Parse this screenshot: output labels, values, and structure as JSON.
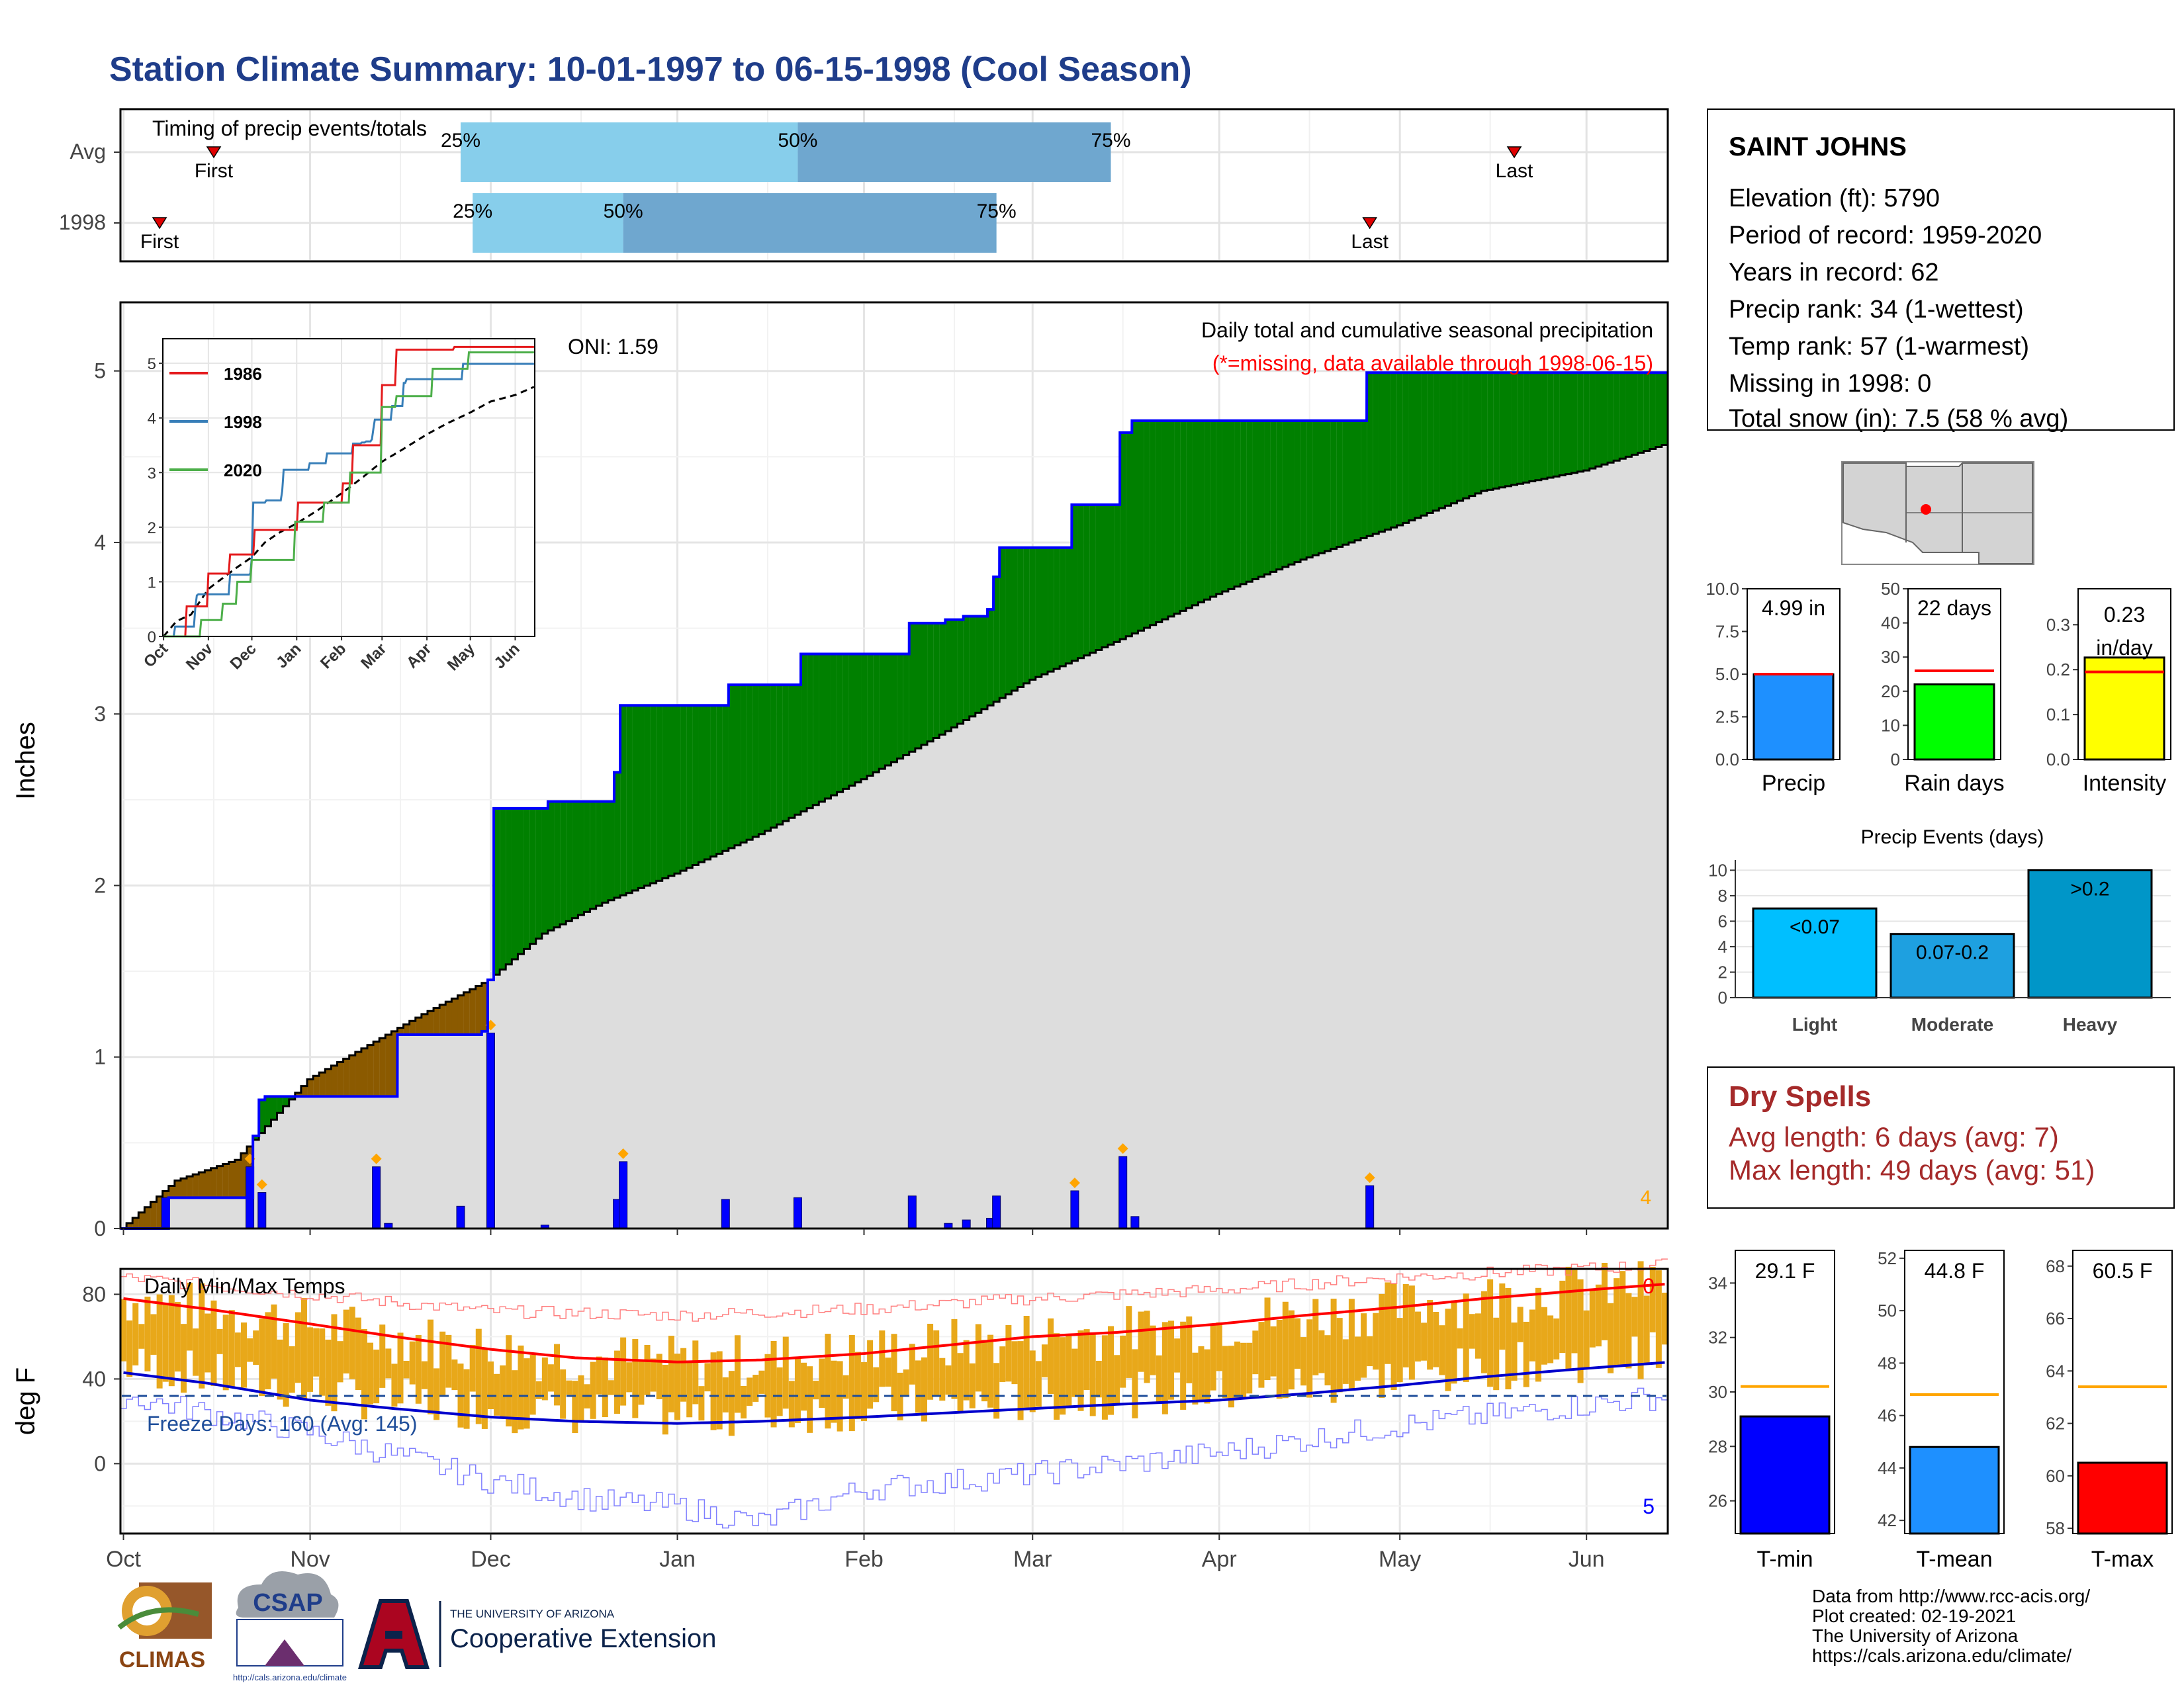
{
  "title": "Station Climate Summary: 10-01-1997 to 06-15-1998 (Cool Season)",
  "colors": {
    "title": "#1F3D8A",
    "cum_obs_line": "#0000FF",
    "above_fill": "#008000",
    "below_fill": "#8B5A00",
    "clim_fill": "#DDDDDD",
    "daily_bar": "#0000FF",
    "tmax_line": "#FF0000",
    "tmin_line": "#0000CC",
    "temp_bar": "#E8A81A",
    "q1_bar": "#87CEEB",
    "q2_bar": "#6FA7CF"
  },
  "timing": {
    "label": "Timing of precip events/totals",
    "rows": [
      {
        "name": "Avg",
        "first_label": "First",
        "last_label": "Last",
        "first_date": "1997-10-16",
        "p25": "1997-11-26",
        "p50": "1998-01-21",
        "p75": "1998-03-14",
        "last_date": "1998-05-20",
        "p25_label": "25%",
        "p50_label": "50%",
        "p75_label": "75%"
      },
      {
        "name": "1998",
        "first_label": "First",
        "last_label": "Last",
        "first_date": "1997-10-07",
        "p25": "1997-11-28",
        "p50": "1997-12-23",
        "p75": "1998-02-23",
        "last_date": "1998-04-26",
        "p25_label": "25%",
        "p50_label": "50%",
        "p75_label": "75%"
      }
    ]
  },
  "precip": {
    "ylabel": "Inches",
    "header1": "Daily total and cumulative seasonal precipitation",
    "header2": "(*=missing, data available through 1998-06-15)",
    "oni": "ONI: 1.59",
    "missing_count": "4"
  },
  "temps": {
    "ylabel": "deg F",
    "header": "Daily Min/Max Temps",
    "freeze_label": "Freeze Days: 160 (Avg: 145)",
    "above_count": "0",
    "below_count": "5"
  },
  "months": [
    "Oct",
    "Nov",
    "Dec",
    "Jan",
    "Feb",
    "Mar",
    "Apr",
    "May",
    "Jun"
  ],
  "inset_months": [
    "Oct",
    "Nov",
    "Dec",
    "Jan",
    "Feb",
    "Mar",
    "Apr",
    "May",
    "Jun"
  ],
  "station": {
    "name": "SAINT JOHNS",
    "lines": [
      "Elevation (ft): 5790",
      "Period of record: 1959-2020",
      "Years in record: 62",
      "Precip rank: 34 (1-wettest)",
      "Temp rank: 57 (1-warmest)",
      "Missing in 1998: 0",
      "Total snow (in): 7.5 (58 % avg)"
    ]
  },
  "mini_bars": [
    {
      "xlabel": "Precip",
      "value_label": "4.99 in",
      "value": 4.99,
      "avg": 5.0,
      "ymax": 10,
      "ticks": [
        "0.0",
        "2.5",
        "5.0",
        "7.5",
        "10.0"
      ],
      "tick_values": [
        0,
        2.5,
        5,
        7.5,
        10
      ],
      "color": "#1E90FF"
    },
    {
      "xlabel": "Rain days",
      "value_label": "22 days",
      "value": 22,
      "avg": 26,
      "ymax": 50,
      "ticks": [
        "0",
        "10",
        "20",
        "30",
        "40",
        "50"
      ],
      "tick_values": [
        0,
        10,
        20,
        30,
        40,
        50
      ],
      "color": "#00FF00"
    },
    {
      "xlabel": "Intensity",
      "value_label": "0.23 in/day",
      "value": 0.227,
      "avg": 0.195,
      "ymax": 0.38,
      "ticks": [
        "0.0",
        "0.1",
        "0.2",
        "0.3"
      ],
      "tick_values": [
        0,
        0.1,
        0.2,
        0.3
      ],
      "color": "#FFFF00"
    }
  ],
  "events": {
    "title": "Precip Events (days)",
    "categories": [
      "Light",
      "Moderate",
      "Heavy"
    ],
    "labels": [
      "<0.07",
      "0.07-0.2",
      ">0.2"
    ],
    "values": [
      7,
      5,
      10
    ],
    "ticks": [
      "0",
      "2",
      "4",
      "6",
      "8",
      "10"
    ],
    "colors": [
      "#00BFFF",
      "#1EA0E0",
      "#0096C8"
    ]
  },
  "dry_spells": {
    "title": "Dry Spells",
    "avg_line": "Avg length: 6 days (avg: 7)",
    "max_line": "Max length: 49 days (avg: 51)"
  },
  "temp_bars": [
    {
      "xlabel": "T-min",
      "value_label": "29.1 F",
      "value": 29.1,
      "avg": 30.2,
      "ymin": 24.8,
      "ymax": 35.2,
      "ticks": [
        "26",
        "28",
        "30",
        "32",
        "34"
      ],
      "tick_values": [
        26,
        28,
        30,
        32,
        34
      ],
      "color": "#0000FF"
    },
    {
      "xlabel": "T-mean",
      "value_label": "44.8 F",
      "value": 44.8,
      "avg": 46.8,
      "ymin": 41.5,
      "ymax": 52.3,
      "ticks": [
        "42",
        "44",
        "46",
        "48",
        "50",
        "52"
      ],
      "tick_values": [
        42,
        44,
        46,
        48,
        50,
        52
      ],
      "color": "#1E90FF"
    },
    {
      "xlabel": "T-max",
      "value_label": "60.5 F",
      "value": 60.5,
      "avg": 63.4,
      "ymin": 57.8,
      "ymax": 68.6,
      "ticks": [
        "58",
        "60",
        "62",
        "64",
        "66",
        "68"
      ],
      "tick_values": [
        58,
        60,
        62,
        64,
        66,
        68
      ],
      "color": "#FF0000"
    }
  ],
  "credits": [
    "Data from http://www.rcc-acis.org/",
    "Plot created: 02-19-2021",
    "The University of Arizona",
    "https://cals.arizona.edu/climate/"
  ],
  "logos": {
    "climas": "CLIMAS",
    "csap": "CSAP",
    "csap_url": "http://cals.arizona.edu/climate",
    "ua_top": "THE UNIVERSITY OF ARIZONA",
    "ua_bottom": "Cooperative Extension"
  },
  "inset": {
    "series": [
      {
        "name": "1986",
        "color": "#E41A1C"
      },
      {
        "name": "1998",
        "color": "#377EB8"
      },
      {
        "name": "2020",
        "color": "#4DAF4A"
      }
    ],
    "yticks": [
      "0",
      "1",
      "2",
      "3",
      "4",
      "5"
    ]
  },
  "chart_data": [
    {
      "type": "line",
      "title": "Daily total and cumulative seasonal precipitation",
      "ylabel": "Inches",
      "ylim": [
        0,
        5.4
      ],
      "x_range": [
        "1997-10-01",
        "1998-06-15"
      ],
      "series": [
        {
          "name": "Cumulative 1998",
          "points": [
            [
              "1997-10-01",
              0
            ],
            [
              "1997-10-08",
              0.0
            ],
            [
              "1997-10-09",
              0.18
            ],
            [
              "1997-10-22",
              0.18
            ],
            [
              "1997-10-23",
              0.54
            ],
            [
              "1997-10-24",
              0.75
            ],
            [
              "1997-10-25",
              0.77
            ],
            [
              "1997-11-05",
              0.77
            ],
            [
              "1997-11-15",
              0.77
            ],
            [
              "1997-11-16",
              1.13
            ],
            [
              "1997-11-30",
              1.15
            ],
            [
              "1997-12-01",
              1.45
            ],
            [
              "1997-12-02",
              2.45
            ],
            [
              "1997-12-10",
              2.45
            ],
            [
              "1997-12-11",
              2.49
            ],
            [
              "1997-12-21",
              2.49
            ],
            [
              "1997-12-22",
              2.66
            ],
            [
              "1997-12-23",
              3.05
            ],
            [
              "1998-01-09",
              3.05
            ],
            [
              "1998-01-10",
              3.17
            ],
            [
              "1998-01-21",
              3.17
            ],
            [
              "1998-01-22",
              3.35
            ],
            [
              "1998-02-08",
              3.35
            ],
            [
              "1998-02-09",
              3.53
            ],
            [
              "1998-02-15",
              3.55
            ],
            [
              "1998-02-18",
              3.57
            ],
            [
              "1998-02-22",
              3.61
            ],
            [
              "1998-02-23",
              3.8
            ],
            [
              "1998-02-24",
              3.97
            ],
            [
              "1998-03-07",
              3.97
            ],
            [
              "1998-03-08",
              4.22
            ],
            [
              "1998-03-15",
              4.22
            ],
            [
              "1998-03-16",
              4.64
            ],
            [
              "1998-03-18",
              4.71
            ],
            [
              "1998-04-25",
              4.71
            ],
            [
              "1998-04-26",
              4.99
            ],
            [
              "1998-06-15",
              4.99
            ]
          ]
        },
        {
          "name": "Average cumulative",
          "points": [
            [
              "1997-10-01",
              0
            ],
            [
              "1997-10-10",
              0.28
            ],
            [
              "1997-10-20",
              0.4
            ],
            [
              "1997-11-01",
              0.87
            ],
            [
              "1997-11-10",
              1.05
            ],
            [
              "1997-11-20",
              1.25
            ],
            [
              "1997-12-01",
              1.45
            ],
            [
              "1997-12-10",
              1.72
            ],
            [
              "1997-12-20",
              1.9
            ],
            [
              "1998-01-01",
              2.07
            ],
            [
              "1998-01-15",
              2.3
            ],
            [
              "1998-02-01",
              2.62
            ],
            [
              "1998-02-15",
              2.9
            ],
            [
              "1998-03-01",
              3.2
            ],
            [
              "1998-03-15",
              3.42
            ],
            [
              "1998-04-01",
              3.7
            ],
            [
              "1998-04-15",
              3.9
            ],
            [
              "1998-05-01",
              4.1
            ],
            [
              "1998-05-15",
              4.3
            ],
            [
              "1998-06-01",
              4.42
            ],
            [
              "1998-06-15",
              4.58
            ]
          ]
        }
      ],
      "daily_precip": [
        [
          "1997-10-08",
          0.18
        ],
        [
          "1997-10-22",
          0.36
        ],
        [
          "1997-10-24",
          0.21
        ],
        [
          "1997-11-12",
          0.36
        ],
        [
          "1997-11-14",
          0.03
        ],
        [
          "1997-11-26",
          0.13
        ],
        [
          "1997-12-01",
          1.14
        ],
        [
          "1997-12-10",
          0.02
        ],
        [
          "1997-12-22",
          0.17
        ],
        [
          "1997-12-23",
          0.39
        ],
        [
          "1998-01-09",
          0.17
        ],
        [
          "1998-01-21",
          0.18
        ],
        [
          "1998-02-09",
          0.19
        ],
        [
          "1998-02-15",
          0.03
        ],
        [
          "1998-02-18",
          0.05
        ],
        [
          "1998-02-22",
          0.06
        ],
        [
          "1998-02-23",
          0.19
        ],
        [
          "1998-03-08",
          0.22
        ],
        [
          "1998-03-16",
          0.42
        ],
        [
          "1998-03-18",
          0.07
        ],
        [
          "1998-04-26",
          0.25
        ]
      ]
    },
    {
      "type": "line",
      "title": "Daily Min/Max Temps",
      "ylabel": "deg F",
      "ylim": [
        -33,
        92
      ],
      "x_range": [
        "1997-10-01",
        "1998-06-15"
      ],
      "series": [
        {
          "name": "Avg max",
          "points": [
            [
              "1997-10-01",
              78
            ],
            [
              "1997-10-15",
              73
            ],
            [
              "1997-11-01",
              66
            ],
            [
              "1997-11-15",
              60
            ],
            [
              "1997-12-01",
              54
            ],
            [
              "1997-12-15",
              50
            ],
            [
              "1998-01-01",
              48
            ],
            [
              "1998-01-15",
              49
            ],
            [
              "1998-02-01",
              52
            ],
            [
              "1998-02-15",
              56
            ],
            [
              "1998-03-01",
              60
            ],
            [
              "1998-03-15",
              62
            ],
            [
              "1998-04-01",
              66
            ],
            [
              "1998-04-15",
              70
            ],
            [
              "1998-05-01",
              74
            ],
            [
              "1998-05-15",
              78
            ],
            [
              "1998-06-01",
              82
            ],
            [
              "1998-06-15",
              85
            ]
          ]
        },
        {
          "name": "Avg min",
          "points": [
            [
              "1997-10-01",
              43
            ],
            [
              "1997-10-15",
              38
            ],
            [
              "1997-11-01",
              30
            ],
            [
              "1997-11-15",
              26
            ],
            [
              "1997-12-01",
              22
            ],
            [
              "1997-12-15",
              20
            ],
            [
              "1998-01-01",
              19
            ],
            [
              "1998-01-15",
              20
            ],
            [
              "1998-02-01",
              22
            ],
            [
              "1998-02-15",
              24
            ],
            [
              "1998-03-01",
              26
            ],
            [
              "1998-03-15",
              28
            ],
            [
              "1998-04-01",
              30
            ],
            [
              "1998-04-15",
              33
            ],
            [
              "1998-05-01",
              37
            ],
            [
              "1998-05-15",
              41
            ],
            [
              "1998-06-01",
              45
            ],
            [
              "1998-06-15",
              48
            ]
          ]
        },
        {
          "name": "Record max",
          "points": [
            [
              "1997-10-01",
              88
            ],
            [
              "1997-11-01",
              80
            ],
            [
              "1997-12-01",
              72
            ],
            [
              "1998-01-01",
              70
            ],
            [
              "1998-02-01",
              73
            ],
            [
              "1998-03-01",
              78
            ],
            [
              "1998-04-01",
              82
            ],
            [
              "1998-05-01",
              88
            ],
            [
              "1998-06-15",
              94
            ]
          ]
        },
        {
          "name": "Record min",
          "points": [
            [
              "1997-10-01",
              32
            ],
            [
              "1997-11-01",
              15
            ],
            [
              "1997-12-01",
              -8
            ],
            [
              "1997-12-20",
              -18
            ],
            [
              "1998-01-01",
              -20
            ],
            [
              "1998-01-15",
              -28
            ],
            [
              "1998-02-01",
              -12
            ],
            [
              "1998-03-01",
              -5
            ],
            [
              "1998-04-01",
              5
            ],
            [
              "1998-05-01",
              18
            ],
            [
              "1998-06-15",
              32
            ]
          ]
        }
      ],
      "freeze_line": 32
    }
  ]
}
